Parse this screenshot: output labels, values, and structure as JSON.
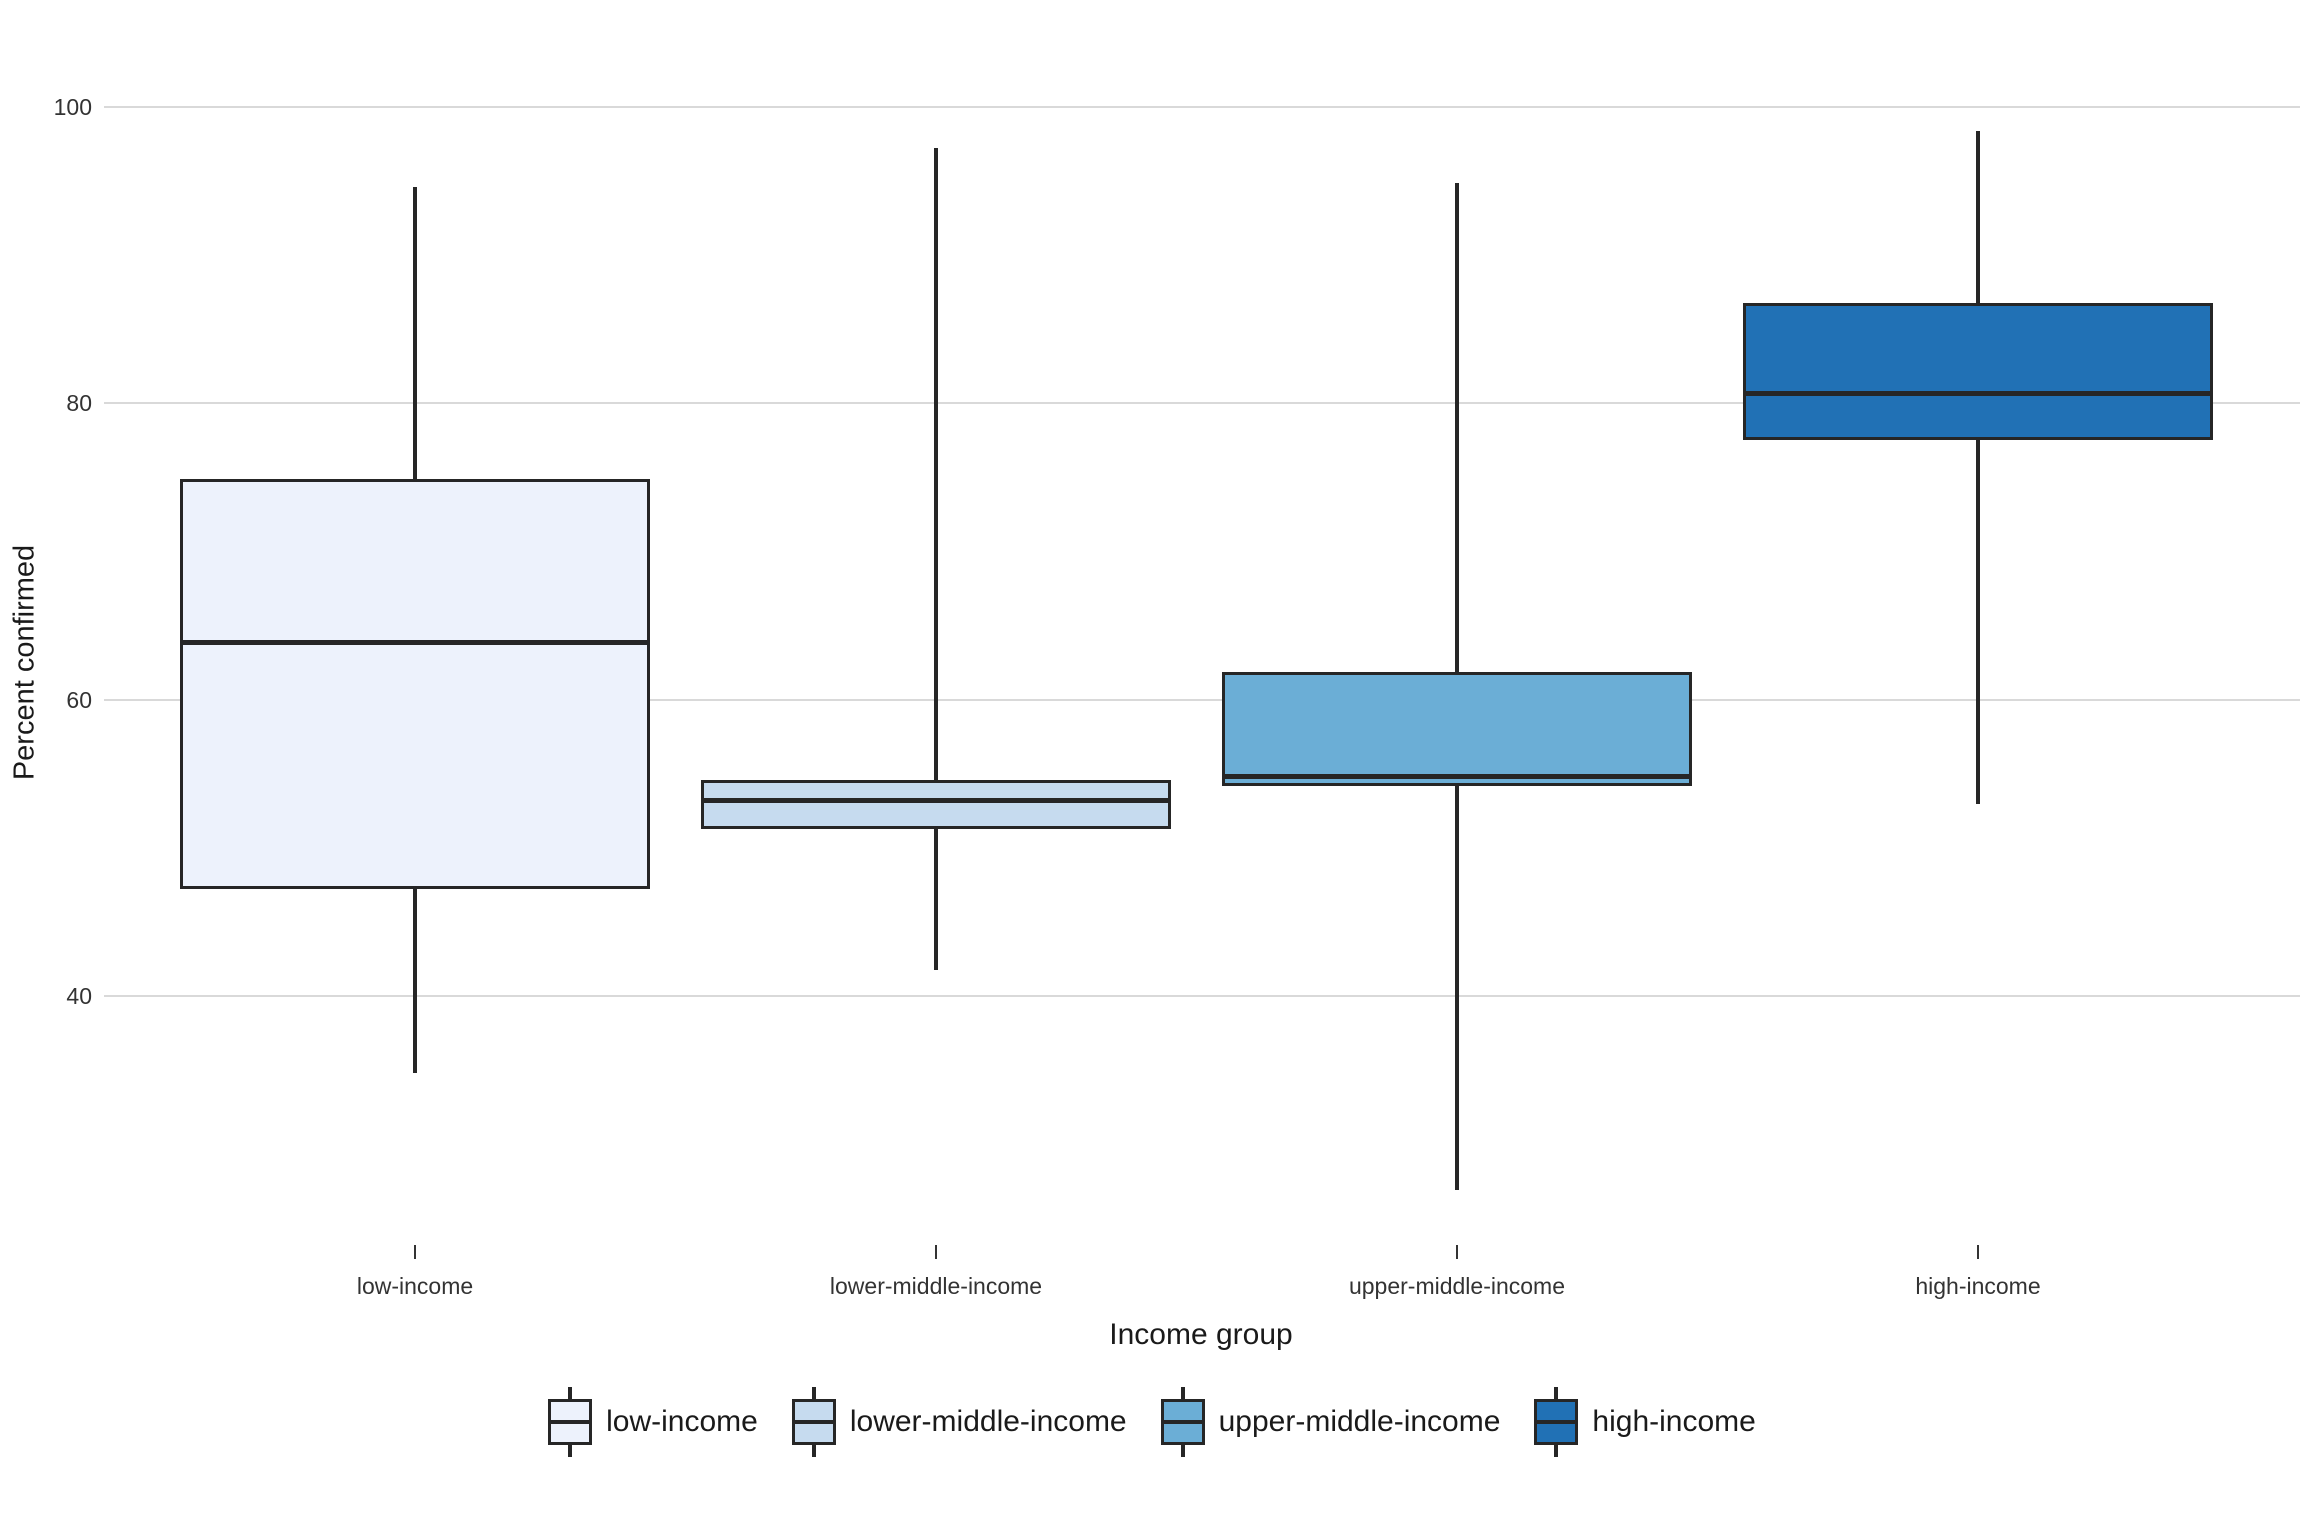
{
  "figure": {
    "background_color": "#ffffff",
    "grid_color": "#d9d9d9",
    "line_color": "#262626",
    "tick_text_color": "#333333",
    "title_text_color": "#1a1a1a"
  },
  "chart_data": {
    "type": "boxplot",
    "title": "",
    "xlabel": "Income group",
    "ylabel": "Percent confirmed",
    "y_ticks": [
      40,
      60,
      80,
      100
    ],
    "ylim": [
      25,
      103
    ],
    "grid": "horizontal-major-only",
    "legend_position": "bottom",
    "categories": [
      "low-income",
      "lower-middle-income",
      "upper-middle-income",
      "high-income"
    ],
    "series": [
      {
        "name": "low-income",
        "color": "#edf2fc",
        "whisker_low": 34.8,
        "q1": 47.2,
        "median": 63.9,
        "q3": 74.9,
        "whisker_high": 94.6
      },
      {
        "name": "lower-middle-income",
        "color": "#c6dbef",
        "whisker_low": 41.8,
        "q1": 51.3,
        "median": 53.2,
        "q3": 54.6,
        "whisker_high": 97.2
      },
      {
        "name": "upper-middle-income",
        "color": "#6baed6",
        "whisker_low": 26.9,
        "q1": 54.2,
        "median": 54.8,
        "q3": 61.9,
        "whisker_high": 94.9
      },
      {
        "name": "high-income",
        "color": "#2171b5",
        "whisker_low": 53.0,
        "q1": 77.5,
        "median": 80.7,
        "q3": 86.8,
        "whisker_high": 98.4
      }
    ],
    "legend_items": [
      {
        "label": "low-income",
        "color": "#edf2fc"
      },
      {
        "label": "lower-middle-income",
        "color": "#c6dbef"
      },
      {
        "label": "upper-middle-income",
        "color": "#6baed6"
      },
      {
        "label": "high-income",
        "color": "#2171b5"
      }
    ]
  }
}
